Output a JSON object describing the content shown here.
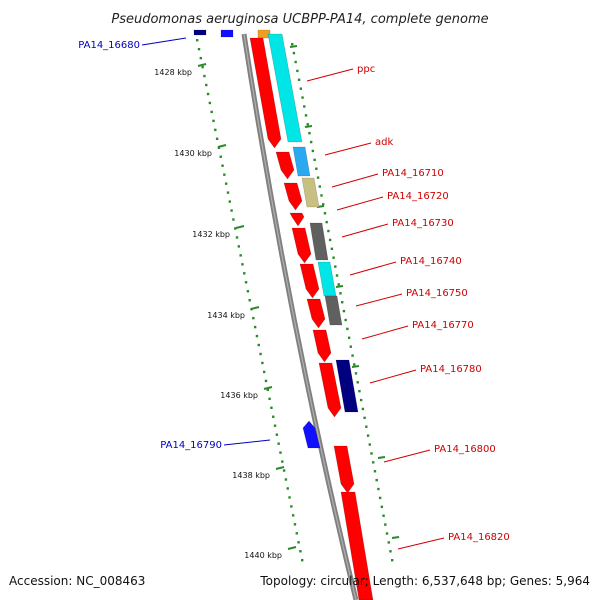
{
  "title": "Pseudomonas aeruginosa UCBPP-PA14, complete genome",
  "accession": "Accession: NC_008463",
  "summary": "Topology: circular; Length: 6,537,648 bp; Genes: 5,964",
  "colors": {
    "backbone": "#808080",
    "label_forward": "#d00000",
    "label_reverse": "#0000c0",
    "tick": "#2a8a2a",
    "cds": "#ff0000",
    "blue_gene": "#1010ff",
    "cyan": "#00e5e5",
    "olive": "#c8c080",
    "darkgray": "#606060",
    "navy": "#000080",
    "skyblue": "#2aa8f0"
  },
  "kbp_ticks": [
    "1428 kbp",
    "1430 kbp",
    "1432 kbp",
    "1434 kbp",
    "1436 kbp",
    "1438 kbp",
    "1440 kbp"
  ],
  "gene_labels": [
    {
      "text": "PA14_16680",
      "strand": "reverse"
    },
    {
      "text": "ppc",
      "strand": "forward"
    },
    {
      "text": "adk",
      "strand": "forward"
    },
    {
      "text": "PA14_16710",
      "strand": "forward"
    },
    {
      "text": "PA14_16720",
      "strand": "forward"
    },
    {
      "text": "PA14_16730",
      "strand": "forward"
    },
    {
      "text": "PA14_16740",
      "strand": "forward"
    },
    {
      "text": "PA14_16750",
      "strand": "forward"
    },
    {
      "text": "PA14_16770",
      "strand": "forward"
    },
    {
      "text": "PA14_16780",
      "strand": "forward"
    },
    {
      "text": "PA14_16790",
      "strand": "reverse"
    },
    {
      "text": "PA14_16800",
      "strand": "forward"
    },
    {
      "text": "PA14_16820",
      "strand": "forward"
    }
  ]
}
